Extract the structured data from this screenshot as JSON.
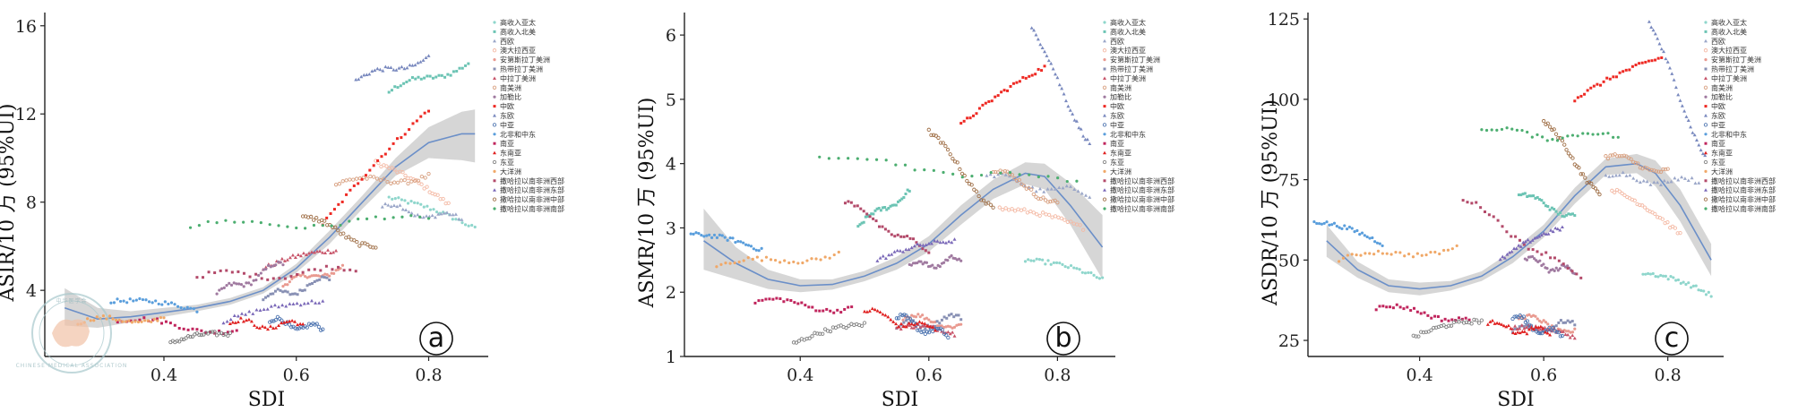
{
  "colors": {
    "高收入亚太": "#8fd6cc",
    "高收入北美": "#6cc4b4",
    "西欧": "#9aa6c8",
    "澳大拉西亚": "#f4b9a4",
    "安第斯拉丁美洲": "#e99a90",
    "热带拉丁美洲": "#8890b4",
    "中拉丁美洲": "#c8556a",
    "南美洲": "#d8a080",
    "加勒比": "#a07aa0",
    "中欧": "#ee2a24",
    "东欧": "#7888be",
    "中亚": "#4d74b0",
    "北非和中东": "#5a9edc",
    "南亚": "#c0245c",
    "东南亚": "#e02020",
    "东亚": "#808080",
    "大洋洲": "#f0a868",
    "撒哈拉以南非洲西部": "#b34a6a",
    "撒哈拉以南非洲东部": "#7a68b8",
    "撒哈拉以南非洲中部": "#a07048",
    "撒哈拉以南非洲南部": "#4cae70",
    "fit_line": "#6b8fc8",
    "ribbon": "#c8c8c8"
  },
  "legend": [
    "高收入亚太",
    "高收入北美",
    "西欧",
    "澳大拉西亚",
    "安第斯拉丁美洲",
    "热带拉丁美洲",
    "中拉丁美洲",
    "南美洲",
    "加勒比",
    "中欧",
    "东欧",
    "中亚",
    "北非和中东",
    "南亚",
    "东南亚",
    "东亚",
    "大洋洲",
    "撒哈拉以南非洲西部",
    "撒哈拉以南非洲东部",
    "撒哈拉以南非洲中部",
    "撒哈拉以南非洲南部"
  ],
  "watermark": {
    "line1": "中华医学会",
    "line2": "CHINESE MEDICAL ASSOCIATION"
  },
  "chart_data": [
    {
      "id": "a",
      "type": "scatter",
      "panel_label": "a",
      "xlabel": "SDI",
      "ylabel": "ASIR/10 万 (95%UI)",
      "xlim": [
        0.22,
        0.89
      ],
      "ylim": [
        1.0,
        16.6
      ],
      "xticks": [
        0.4,
        0.6,
        0.8
      ],
      "xtick_labels": [
        "0.4",
        "0.6",
        "0.8"
      ],
      "yticks": [
        4,
        8,
        12,
        16
      ],
      "ytick_labels": [
        "4",
        "8",
        "12",
        "16"
      ],
      "fit": {
        "x": [
          0.25,
          0.3,
          0.35,
          0.4,
          0.45,
          0.5,
          0.55,
          0.6,
          0.65,
          0.7,
          0.75,
          0.8,
          0.85,
          0.87
        ],
        "y": [
          3.2,
          2.7,
          2.8,
          3.0,
          3.2,
          3.5,
          4.0,
          5.0,
          6.4,
          8.0,
          9.6,
          10.7,
          11.1,
          11.1
        ],
        "lower": [
          2.4,
          2.3,
          2.55,
          2.8,
          3.05,
          3.35,
          3.85,
          4.8,
          6.1,
          7.7,
          9.2,
          10.0,
          9.9,
          9.8
        ],
        "upper": [
          4.1,
          3.2,
          3.05,
          3.2,
          3.35,
          3.65,
          4.15,
          5.2,
          6.7,
          8.3,
          10.0,
          11.4,
          12.1,
          12.2
        ]
      },
      "series": [
        {
          "name": "高收入亚太",
          "x": [
            0.74,
            0.87
          ],
          "y": [
            8.2,
            6.8
          ]
        },
        {
          "name": "高收入北美",
          "x": [
            0.74,
            0.86
          ],
          "y": [
            13.0,
            14.3
          ]
        },
        {
          "name": "西欧",
          "x": [
            0.73,
            0.85
          ],
          "y": [
            7.8,
            7.2
          ]
        },
        {
          "name": "澳大拉西亚",
          "x": [
            0.72,
            0.83
          ],
          "y": [
            9.8,
            7.9
          ]
        },
        {
          "name": "安第斯拉丁美洲",
          "x": [
            0.58,
            0.67
          ],
          "y": [
            4.2,
            5.1
          ]
        },
        {
          "name": "热带拉丁美洲",
          "x": [
            0.55,
            0.65
          ],
          "y": [
            3.6,
            4.5
          ]
        },
        {
          "name": "中拉丁美洲",
          "x": [
            0.55,
            0.66
          ],
          "y": [
            5.0,
            5.8
          ]
        },
        {
          "name": "南美洲",
          "x": [
            0.66,
            0.8
          ],
          "y": [
            8.8,
            9.2
          ]
        },
        {
          "name": "加勒比",
          "x": [
            0.48,
            0.58
          ],
          "y": [
            3.8,
            5.2
          ]
        },
        {
          "name": "中欧",
          "x": [
            0.64,
            0.8
          ],
          "y": [
            7.0,
            12.2
          ]
        },
        {
          "name": "东欧",
          "x": [
            0.69,
            0.8
          ],
          "y": [
            13.5,
            14.6
          ]
        },
        {
          "name": "中亚",
          "x": [
            0.56,
            0.64
          ],
          "y": [
            2.6,
            2.2
          ]
        },
        {
          "name": "北非和中东",
          "x": [
            0.32,
            0.45
          ],
          "y": [
            3.5,
            3.1
          ]
        },
        {
          "name": "南亚",
          "x": [
            0.33,
            0.51
          ],
          "y": [
            2.6,
            2.2
          ]
        },
        {
          "name": "东南亚",
          "x": [
            0.5,
            0.61
          ],
          "y": [
            2.5,
            2.4
          ]
        },
        {
          "name": "东亚",
          "x": [
            0.41,
            0.5
          ],
          "y": [
            1.6,
            2.0
          ]
        },
        {
          "name": "大洋洲",
          "x": [
            0.27,
            0.4
          ],
          "y": [
            2.5,
            2.8
          ]
        },
        {
          "name": "撒哈拉以南非洲西部",
          "x": [
            0.45,
            0.69
          ],
          "y": [
            4.6,
            4.9
          ]
        },
        {
          "name": "撒哈拉以南非洲东部",
          "x": [
            0.49,
            0.64
          ],
          "y": [
            2.6,
            3.5
          ]
        },
        {
          "name": "撒哈拉以南非洲中部",
          "x": [
            0.61,
            0.72
          ],
          "y": [
            7.3,
            6.0
          ]
        },
        {
          "name": "撒哈拉以南非洲南部",
          "x": [
            0.44,
            0.8
          ],
          "y": [
            6.9,
            7.2
          ]
        }
      ]
    },
    {
      "id": "b",
      "type": "scatter",
      "panel_label": "b",
      "xlabel": "SDI",
      "ylabel": "ASMR/10 万 (95%UI)",
      "xlim": [
        0.22,
        0.89
      ],
      "ylim": [
        1.0,
        6.35
      ],
      "xticks": [
        0.4,
        0.6,
        0.8
      ],
      "xtick_labels": [
        "0.4",
        "0.6",
        "0.8"
      ],
      "yticks": [
        1,
        2,
        3,
        4,
        5,
        6
      ],
      "ytick_labels": [
        "1",
        "2",
        "3",
        "4",
        "5",
        "6"
      ],
      "fit": {
        "x": [
          0.25,
          0.3,
          0.35,
          0.4,
          0.45,
          0.5,
          0.55,
          0.6,
          0.65,
          0.7,
          0.75,
          0.78,
          0.82,
          0.87
        ],
        "y": [
          2.8,
          2.45,
          2.2,
          2.1,
          2.12,
          2.25,
          2.45,
          2.75,
          3.2,
          3.6,
          3.85,
          3.8,
          3.35,
          2.7
        ],
        "lower": [
          2.35,
          2.2,
          2.05,
          2.0,
          2.04,
          2.17,
          2.35,
          2.63,
          3.05,
          3.45,
          3.68,
          3.6,
          3.05,
          2.2
        ],
        "upper": [
          3.3,
          2.7,
          2.35,
          2.2,
          2.2,
          2.33,
          2.55,
          2.87,
          3.35,
          3.75,
          4.02,
          4.0,
          3.7,
          3.2
        ]
      },
      "series": [
        {
          "name": "高收入亚太",
          "x": [
            0.75,
            0.87
          ],
          "y": [
            2.5,
            2.2
          ]
        },
        {
          "name": "高收入北美",
          "x": [
            0.49,
            0.57
          ],
          "y": [
            3.0,
            3.6
          ]
        },
        {
          "name": "西欧",
          "x": [
            0.69,
            0.85
          ],
          "y": [
            3.8,
            3.5
          ]
        },
        {
          "name": "澳大拉西亚",
          "x": [
            0.71,
            0.84
          ],
          "y": [
            3.3,
            3.0
          ]
        },
        {
          "name": "安第斯拉丁美洲",
          "x": [
            0.56,
            0.65
          ],
          "y": [
            1.6,
            1.5
          ]
        },
        {
          "name": "热带拉丁美洲",
          "x": [
            0.55,
            0.65
          ],
          "y": [
            1.45,
            1.6
          ]
        },
        {
          "name": "中拉丁美洲",
          "x": [
            0.55,
            0.64
          ],
          "y": [
            1.45,
            1.35
          ]
        },
        {
          "name": "南美洲",
          "x": [
            0.7,
            0.8
          ],
          "y": [
            3.9,
            3.4
          ]
        },
        {
          "name": "加勒比",
          "x": [
            0.57,
            0.65
          ],
          "y": [
            2.4,
            2.5
          ]
        },
        {
          "name": "中欧",
          "x": [
            0.65,
            0.78
          ],
          "y": [
            4.6,
            5.5
          ]
        },
        {
          "name": "东欧",
          "x": [
            0.76,
            0.85
          ],
          "y": [
            6.1,
            4.3
          ]
        },
        {
          "name": "中亚",
          "x": [
            0.55,
            0.63
          ],
          "y": [
            1.6,
            1.3
          ]
        },
        {
          "name": "北非和中东",
          "x": [
            0.23,
            0.34
          ],
          "y": [
            2.9,
            2.65
          ]
        },
        {
          "name": "南亚",
          "x": [
            0.33,
            0.48
          ],
          "y": [
            1.85,
            1.75
          ]
        },
        {
          "name": "东南亚",
          "x": [
            0.5,
            0.61
          ],
          "y": [
            1.7,
            1.4
          ]
        },
        {
          "name": "东亚",
          "x": [
            0.39,
            0.5
          ],
          "y": [
            1.2,
            1.5
          ]
        },
        {
          "name": "大洋洲",
          "x": [
            0.27,
            0.46
          ],
          "y": [
            2.4,
            2.6
          ]
        },
        {
          "name": "撒哈拉以南非洲西部",
          "x": [
            0.47,
            0.6
          ],
          "y": [
            3.4,
            2.6
          ]
        },
        {
          "name": "撒哈拉以南非洲东部",
          "x": [
            0.52,
            0.64
          ],
          "y": [
            2.5,
            2.8
          ]
        },
        {
          "name": "撒哈拉以南非洲中部",
          "x": [
            0.6,
            0.7
          ],
          "y": [
            4.5,
            3.3
          ]
        },
        {
          "name": "撒哈拉以南非洲南部",
          "x": [
            0.43,
            0.83
          ],
          "y": [
            4.1,
            3.7
          ]
        }
      ]
    },
    {
      "id": "c",
      "type": "scatter",
      "panel_label": "c",
      "xlabel": "SDI",
      "ylabel": "ASDR/10 万 (95%UI)",
      "xlim": [
        0.22,
        0.89
      ],
      "ylim": [
        20,
        127
      ],
      "xticks": [
        0.4,
        0.6,
        0.8
      ],
      "xtick_labels": [
        "0.4",
        "0.6",
        "0.8"
      ],
      "yticks": [
        25,
        50,
        75,
        100,
        125
      ],
      "ytick_labels": [
        "25",
        "50",
        "75",
        "100",
        "125"
      ],
      "fit": {
        "x": [
          0.25,
          0.3,
          0.35,
          0.4,
          0.45,
          0.5,
          0.55,
          0.6,
          0.65,
          0.7,
          0.75,
          0.78,
          0.82,
          0.87
        ],
        "y": [
          56,
          47,
          42,
          41,
          42,
          45,
          51,
          59,
          70,
          79,
          80,
          77,
          67,
          50
        ],
        "lower": [
          51,
          44.5,
          40,
          39,
          40.5,
          43.5,
          49,
          57,
          67.5,
          76.5,
          77,
          73,
          62,
          45
        ],
        "upper": [
          61,
          49.5,
          44,
          43,
          43.5,
          46.5,
          53,
          61,
          72.5,
          81.5,
          83,
          81,
          72,
          55
        ]
      },
      "series": [
        {
          "name": "高收入亚太",
          "x": [
            0.76,
            0.87
          ],
          "y": [
            46,
            39
          ]
        },
        {
          "name": "高收入北美",
          "x": [
            0.56,
            0.65
          ],
          "y": [
            70,
            64
          ]
        },
        {
          "name": "西欧",
          "x": [
            0.7,
            0.85
          ],
          "y": [
            76,
            74
          ]
        },
        {
          "name": "澳大拉西亚",
          "x": [
            0.71,
            0.82
          ],
          "y": [
            72,
            58
          ]
        },
        {
          "name": "安第斯拉丁美洲",
          "x": [
            0.56,
            0.65
          ],
          "y": [
            32,
            28
          ]
        },
        {
          "name": "热带拉丁美洲",
          "x": [
            0.55,
            0.65
          ],
          "y": [
            28,
            30
          ]
        },
        {
          "name": "中拉丁美洲",
          "x": [
            0.55,
            0.65
          ],
          "y": [
            29,
            26
          ]
        },
        {
          "name": "南美洲",
          "x": [
            0.7,
            0.8
          ],
          "y": [
            82,
            78
          ]
        },
        {
          "name": "加勒比",
          "x": [
            0.57,
            0.65
          ],
          "y": [
            50,
            46
          ]
        },
        {
          "name": "中欧",
          "x": [
            0.65,
            0.79
          ],
          "y": [
            100,
            113
          ]
        },
        {
          "name": "东欧",
          "x": [
            0.77,
            0.86
          ],
          "y": [
            124,
            82
          ]
        },
        {
          "name": "中亚",
          "x": [
            0.55,
            0.63
          ],
          "y": [
            32,
            26
          ]
        },
        {
          "name": "北非和中东",
          "x": [
            0.23,
            0.34
          ],
          "y": [
            62,
            55
          ]
        },
        {
          "name": "南亚",
          "x": [
            0.33,
            0.48
          ],
          "y": [
            35,
            32
          ]
        },
        {
          "name": "东南亚",
          "x": [
            0.51,
            0.61
          ],
          "y": [
            30,
            27
          ]
        },
        {
          "name": "东亚",
          "x": [
            0.39,
            0.5
          ],
          "y": [
            26,
            31
          ]
        },
        {
          "name": "大洋洲",
          "x": [
            0.27,
            0.46
          ],
          "y": [
            50,
            54
          ]
        },
        {
          "name": "撒哈拉以南非洲西部",
          "x": [
            0.47,
            0.66
          ],
          "y": [
            69,
            44
          ]
        },
        {
          "name": "撒哈拉以南非洲东部",
          "x": [
            0.53,
            0.63
          ],
          "y": [
            50,
            60
          ]
        },
        {
          "name": "撒哈拉以南非洲中部",
          "x": [
            0.6,
            0.69
          ],
          "y": [
            93,
            71
          ]
        },
        {
          "name": "撒哈拉以南非洲南部",
          "x": [
            0.5,
            0.72
          ],
          "y": [
            90,
            88
          ]
        }
      ]
    }
  ]
}
